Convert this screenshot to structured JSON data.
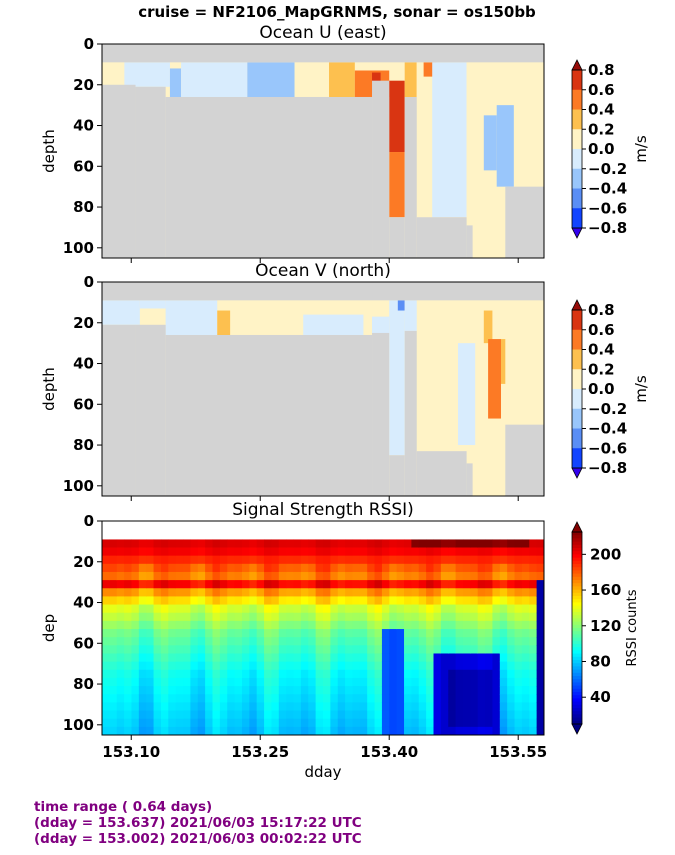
{
  "suptitle": "cruise = NF2106_MapGRNMS,  sonar = os150bb",
  "footer": {
    "line1": "time range ( 0.64 days)",
    "line2": "(dday = 153.637) 2021/06/03 15:17:22 UTC",
    "line3": "(dday = 153.002) 2021/06/03 00:02:22 UTC"
  },
  "colors": {
    "no_data": "#d3d3d3",
    "footer_text": "#800080"
  },
  "chart_data": [
    {
      "type": "heatmap",
      "title": "Ocean U (east)",
      "ylabel": "depth",
      "xlabel": "",
      "xlim": [
        153.066,
        153.58
      ],
      "ylim": [
        105,
        0
      ],
      "yticks": [
        0,
        20,
        40,
        60,
        80,
        100
      ],
      "xticks": [
        153.1,
        153.25,
        153.4,
        153.55
      ],
      "x_tick_labels_shown": false,
      "colorbar": {
        "label": "m/s",
        "ticks": [
          "0.8",
          "0.6",
          "0.4",
          "0.2",
          "0.0",
          "−0.2",
          "−0.4",
          "−0.6",
          "−0.8"
        ],
        "levels": [
          -0.8,
          -0.6,
          -0.4,
          -0.2,
          0.0,
          0.2,
          0.4,
          0.6,
          0.8
        ],
        "colors": [
          "#3300ee",
          "#1144ff",
          "#5a8ef5",
          "#99c6fb",
          "#d8ecfd",
          "#fff3c6",
          "#fdc04f",
          "#fc7a25",
          "#d93512",
          "#970c09"
        ],
        "extend": "both"
      },
      "no_data_regions": [
        {
          "x0": 153.066,
          "x1": 153.58,
          "d0": 0,
          "d1": 9
        },
        {
          "x0": 153.066,
          "x1": 153.105,
          "d0": 20,
          "d1": 105
        },
        {
          "x0": 153.105,
          "x1": 153.14,
          "d0": 21,
          "d1": 105
        },
        {
          "x0": 153.14,
          "x1": 153.38,
          "d0": 26,
          "d1": 105
        },
        {
          "x0": 153.38,
          "x1": 153.4,
          "d0": 18,
          "d1": 105
        },
        {
          "x0": 153.4,
          "x1": 153.418,
          "d0": 85,
          "d1": 105
        },
        {
          "x0": 153.418,
          "x1": 153.432,
          "d0": 26,
          "d1": 105
        },
        {
          "x0": 153.432,
          "x1": 153.49,
          "d0": 85,
          "d1": 105
        },
        {
          "x0": 153.49,
          "x1": 153.497,
          "d0": 89,
          "d1": 105
        },
        {
          "x0": 153.535,
          "x1": 153.58,
          "d0": 70,
          "d1": 105
        }
      ],
      "field": {
        "background": 0.0,
        "patches": [
          {
            "x0": 153.066,
            "x1": 153.092,
            "d0": 9,
            "d1": 20,
            "v": 0.1
          },
          {
            "x0": 153.092,
            "x1": 153.145,
            "d0": 9,
            "d1": 21,
            "v": -0.1
          },
          {
            "x0": 153.145,
            "x1": 153.158,
            "d0": 12,
            "d1": 26,
            "v": -0.3
          },
          {
            "x0": 153.158,
            "x1": 153.235,
            "d0": 9,
            "d1": 26,
            "v": -0.1
          },
          {
            "x0": 153.235,
            "x1": 153.29,
            "d0": 9,
            "d1": 26,
            "v": -0.3
          },
          {
            "x0": 153.29,
            "x1": 153.33,
            "d0": 9,
            "d1": 26,
            "v": 0.1
          },
          {
            "x0": 153.33,
            "x1": 153.36,
            "d0": 9,
            "d1": 26,
            "v": 0.3
          },
          {
            "x0": 153.36,
            "x1": 153.4,
            "d0": 13,
            "d1": 26,
            "v": 0.5
          },
          {
            "x0": 153.38,
            "x1": 153.39,
            "d0": 14,
            "d1": 24,
            "v": 0.7
          },
          {
            "x0": 153.4,
            "x1": 153.418,
            "d0": 18,
            "d1": 53,
            "v": 0.7
          },
          {
            "x0": 153.4,
            "x1": 153.418,
            "d0": 53,
            "d1": 85,
            "v": 0.5
          },
          {
            "x0": 153.418,
            "x1": 153.432,
            "d0": 9,
            "d1": 26,
            "v": 0.3
          },
          {
            "x0": 153.432,
            "x1": 153.45,
            "d0": 9,
            "d1": 85,
            "v": 0.1
          },
          {
            "x0": 153.44,
            "x1": 153.455,
            "d0": 9,
            "d1": 16,
            "v": 0.5
          },
          {
            "x0": 153.45,
            "x1": 153.49,
            "d0": 9,
            "d1": 85,
            "v": -0.1
          },
          {
            "x0": 153.46,
            "x1": 153.49,
            "d0": 85,
            "d1": 105,
            "v": 0.1
          },
          {
            "x0": 153.49,
            "x1": 153.535,
            "d0": 9,
            "d1": 105,
            "v": 0.1
          },
          {
            "x0": 153.51,
            "x1": 153.525,
            "d0": 35,
            "d1": 62,
            "v": -0.3
          },
          {
            "x0": 153.525,
            "x1": 153.545,
            "d0": 30,
            "d1": 70,
            "v": -0.3
          },
          {
            "x0": 153.545,
            "x1": 153.58,
            "d0": 9,
            "d1": 70,
            "v": 0.1
          }
        ]
      }
    },
    {
      "type": "heatmap",
      "title": "Ocean V (north)",
      "ylabel": "depth",
      "xlabel": "",
      "xlim": [
        153.066,
        153.58
      ],
      "ylim": [
        105,
        0
      ],
      "yticks": [
        0,
        20,
        40,
        60,
        80,
        100
      ],
      "xticks": [
        153.1,
        153.25,
        153.4,
        153.55
      ],
      "x_tick_labels_shown": false,
      "colorbar": {
        "label": "m/s",
        "ticks": [
          "0.8",
          "0.6",
          "0.4",
          "0.2",
          "0.0",
          "−0.2",
          "−0.4",
          "−0.6",
          "−0.8"
        ],
        "levels": [
          -0.8,
          -0.6,
          -0.4,
          -0.2,
          0.0,
          0.2,
          0.4,
          0.6,
          0.8
        ],
        "colors": [
          "#3300ee",
          "#1144ff",
          "#5a8ef5",
          "#99c6fb",
          "#d8ecfd",
          "#fff3c6",
          "#fdc04f",
          "#fc7a25",
          "#d93512",
          "#970c09"
        ],
        "extend": "both"
      },
      "no_data_regions": [
        {
          "x0": 153.066,
          "x1": 153.58,
          "d0": 0,
          "d1": 9
        },
        {
          "x0": 153.066,
          "x1": 153.105,
          "d0": 21,
          "d1": 105
        },
        {
          "x0": 153.105,
          "x1": 153.14,
          "d0": 21,
          "d1": 105
        },
        {
          "x0": 153.14,
          "x1": 153.38,
          "d0": 26,
          "d1": 105
        },
        {
          "x0": 153.38,
          "x1": 153.4,
          "d0": 25,
          "d1": 105
        },
        {
          "x0": 153.4,
          "x1": 153.418,
          "d0": 85,
          "d1": 105
        },
        {
          "x0": 153.418,
          "x1": 153.432,
          "d0": 24,
          "d1": 105
        },
        {
          "x0": 153.432,
          "x1": 153.49,
          "d0": 83,
          "d1": 105
        },
        {
          "x0": 153.49,
          "x1": 153.497,
          "d0": 89,
          "d1": 105
        },
        {
          "x0": 153.535,
          "x1": 153.58,
          "d0": 70,
          "d1": 105
        }
      ],
      "field": {
        "background": 0.1,
        "patches": [
          {
            "x0": 153.066,
            "x1": 153.11,
            "d0": 9,
            "d1": 21,
            "v": -0.1
          },
          {
            "x0": 153.11,
            "x1": 153.14,
            "d0": 9,
            "d1": 13,
            "v": -0.1
          },
          {
            "x0": 153.14,
            "x1": 153.2,
            "d0": 9,
            "d1": 26,
            "v": -0.1
          },
          {
            "x0": 153.2,
            "x1": 153.215,
            "d0": 14,
            "d1": 26,
            "v": 0.3
          },
          {
            "x0": 153.3,
            "x1": 153.37,
            "d0": 16,
            "d1": 26,
            "v": -0.1
          },
          {
            "x0": 153.38,
            "x1": 153.4,
            "d0": 17,
            "d1": 26,
            "v": -0.1
          },
          {
            "x0": 153.385,
            "x1": 153.39,
            "d0": 29,
            "d1": 34,
            "v": -0.5
          },
          {
            "x0": 153.4,
            "x1": 153.418,
            "d0": 9,
            "d1": 85,
            "v": -0.1
          },
          {
            "x0": 153.41,
            "x1": 153.418,
            "d0": 9,
            "d1": 14,
            "v": -0.5
          },
          {
            "x0": 153.418,
            "x1": 153.432,
            "d0": 9,
            "d1": 24,
            "v": -0.1
          },
          {
            "x0": 153.48,
            "x1": 153.5,
            "d0": 30,
            "d1": 80,
            "v": -0.1
          },
          {
            "x0": 153.51,
            "x1": 153.52,
            "d0": 14,
            "d1": 30,
            "v": 0.3
          },
          {
            "x0": 153.515,
            "x1": 153.53,
            "d0": 28,
            "d1": 67,
            "v": 0.5
          },
          {
            "x0": 153.53,
            "x1": 153.535,
            "d0": 28,
            "d1": 50,
            "v": 0.3
          }
        ]
      }
    },
    {
      "type": "heatmap",
      "title": "Signal Strength RSSI)",
      "ylabel": "dep",
      "xlabel": "dday",
      "xlim": [
        153.066,
        153.58
      ],
      "ylim": [
        105,
        0
      ],
      "yticks": [
        0,
        20,
        40,
        60,
        80,
        100
      ],
      "xticks": [
        153.1,
        153.25,
        153.4,
        153.55
      ],
      "x_tick_labels": [
        "153.10",
        "153.25",
        "153.40",
        "153.55"
      ],
      "x_tick_labels_shown": true,
      "colorbar": {
        "label": "RSSI counts",
        "ticks": [
          "200",
          "160",
          "120",
          "80",
          "40"
        ],
        "range": [
          10,
          225
        ],
        "colormap": "jet",
        "extend": "both"
      },
      "no_data_regions": [
        {
          "x0": 153.066,
          "x1": 153.58,
          "d0": 0,
          "d1": 9
        }
      ],
      "field": {
        "profile_depths": [
          9,
          13,
          17,
          21,
          25,
          29,
          33,
          37,
          41,
          45,
          49,
          53,
          57,
          61,
          65,
          69,
          73,
          77,
          81,
          85,
          89,
          93,
          97,
          101,
          105
        ],
        "profile_values": [
          205,
          200,
          190,
          180,
          172,
          198,
          165,
          150,
          135,
          128,
          120,
          112,
          108,
          104,
          100,
          96,
          92,
          90,
          88,
          86,
          84,
          82,
          80,
          78,
          76
        ],
        "anomalies": [
          {
            "x0": 153.39,
            "x1": 153.42,
            "d0": 55,
            "d1": 105,
            "v": 55
          },
          {
            "x0": 153.455,
            "x1": 153.53,
            "d0": 65,
            "d1": 105,
            "v": 30
          },
          {
            "x0": 153.47,
            "x1": 153.52,
            "d0": 75,
            "d1": 100,
            "v": 20
          },
          {
            "x0": 153.57,
            "x1": 153.58,
            "d0": 30,
            "d1": 105,
            "v": 15
          },
          {
            "x0": 153.43,
            "x1": 153.56,
            "d0": 9,
            "d1": 13,
            "v": 225
          }
        ]
      }
    }
  ]
}
